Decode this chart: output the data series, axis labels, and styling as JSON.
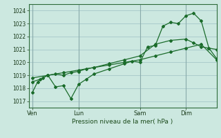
{
  "background_color": "#cce8e0",
  "grid_color": "#aacccc",
  "line_color": "#1a6b2a",
  "title": "Pression niveau de la mer( hPa )",
  "ylim": [
    1016.5,
    1024.5
  ],
  "yticks": [
    1017,
    1018,
    1019,
    1020,
    1021,
    1022,
    1023,
    1024
  ],
  "day_labels": [
    "Ven",
    "Lun",
    "Sam",
    "Dim"
  ],
  "day_positions": [
    0,
    36,
    84,
    120
  ],
  "xlim": [
    -3,
    144
  ],
  "series1_x": [
    0,
    4,
    8,
    12,
    18,
    24,
    30,
    36,
    42,
    48,
    60,
    72,
    78,
    84,
    90,
    96,
    102,
    108,
    114,
    120,
    126,
    132,
    138,
    144
  ],
  "series1_y": [
    1017.7,
    1018.5,
    1018.8,
    1019.0,
    1018.1,
    1018.2,
    1017.2,
    1018.3,
    1018.7,
    1019.1,
    1019.5,
    1019.9,
    1020.1,
    1020.0,
    1021.2,
    1021.3,
    1022.8,
    1023.1,
    1023.0,
    1023.6,
    1023.8,
    1023.2,
    1021.1,
    1021.0
  ],
  "series2_x": [
    0,
    6,
    12,
    18,
    24,
    30,
    36,
    42,
    48,
    60,
    72,
    84,
    96,
    108,
    120,
    126,
    132,
    138,
    144
  ],
  "series2_y": [
    1018.5,
    1018.7,
    1019.0,
    1019.1,
    1019.0,
    1019.2,
    1019.3,
    1019.5,
    1019.6,
    1019.9,
    1020.2,
    1020.5,
    1021.4,
    1021.7,
    1021.8,
    1021.5,
    1021.2,
    1021.1,
    1020.3
  ],
  "series3_x": [
    0,
    12,
    24,
    36,
    48,
    60,
    72,
    84,
    96,
    108,
    120,
    132,
    144
  ],
  "series3_y": [
    1018.8,
    1019.0,
    1019.2,
    1019.4,
    1019.6,
    1019.8,
    1020.0,
    1020.2,
    1020.5,
    1020.8,
    1021.1,
    1021.4,
    1020.2
  ]
}
